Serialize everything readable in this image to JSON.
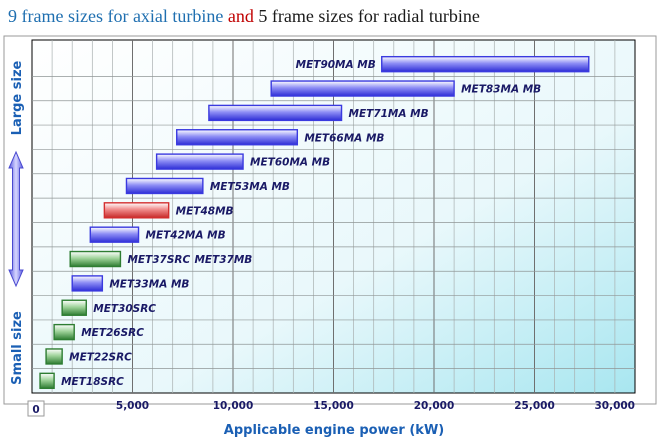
{
  "title": {
    "part1": "9 frame sizes for axial turbine",
    "part2": " and",
    "part3": " 5 frame sizes for radial turbine",
    "color1": "#1f6fb0",
    "color2": "#c00000",
    "color3": "#1a1a1a"
  },
  "chart_data": {
    "type": "bar",
    "orientation": "horizontal-range",
    "xlabel": "Applicable engine power (kW)",
    "xlim": [
      0,
      30000
    ],
    "xticks": [
      0,
      5000,
      10000,
      15000,
      20000,
      25000,
      30000
    ],
    "xtick_labels": [
      "0",
      "5,000",
      "10,000",
      "15,000",
      "20,000",
      "25,000",
      "30,000"
    ],
    "grid": true,
    "side_labels": {
      "top": "Large size",
      "bottom": "Small size"
    },
    "colors": {
      "axial": "#3a3adf",
      "radial": "#2e7d32",
      "highlight": "#d32f2f"
    },
    "rows": [
      {
        "label": "MET90MA MB",
        "start": 17400,
        "end": 27700,
        "kind": "axial",
        "label_side": "left"
      },
      {
        "label": "MET83MA MB",
        "start": 11900,
        "end": 21000,
        "kind": "axial",
        "label_side": "right"
      },
      {
        "label": "MET71MA MB",
        "start": 8800,
        "end": 15400,
        "kind": "axial",
        "label_side": "right"
      },
      {
        "label": "MET66MA MB",
        "start": 7200,
        "end": 13200,
        "kind": "axial",
        "label_side": "right"
      },
      {
        "label": "MET60MA MB",
        "start": 6200,
        "end": 10500,
        "kind": "axial",
        "label_side": "right"
      },
      {
        "label": "MET53MA MB",
        "start": 4700,
        "end": 8500,
        "kind": "axial",
        "label_side": "right"
      },
      {
        "label": "MET48MB",
        "start": 3600,
        "end": 6800,
        "kind": "highlight",
        "label_side": "right"
      },
      {
        "label": "MET42MA MB",
        "start": 2900,
        "end": 5300,
        "kind": "axial",
        "label_side": "right"
      },
      {
        "label": "MET37SRC",
        "extra_label": "MET37MB",
        "start": 1900,
        "end": 4400,
        "kind": "radial",
        "label_side": "right"
      },
      {
        "label": "MET33MA MB",
        "start": 2000,
        "end": 3500,
        "kind": "axial",
        "label_side": "right"
      },
      {
        "label": "MET30SRC",
        "start": 1500,
        "end": 2700,
        "kind": "radial",
        "label_side": "right"
      },
      {
        "label": "MET26SRC",
        "start": 1100,
        "end": 2100,
        "kind": "radial",
        "label_side": "right"
      },
      {
        "label": "MET22SRC",
        "start": 700,
        "end": 1500,
        "kind": "radial",
        "label_side": "right"
      },
      {
        "label": "MET18SRC",
        "start": 400,
        "end": 1100,
        "kind": "radial",
        "label_side": "right"
      }
    ]
  }
}
